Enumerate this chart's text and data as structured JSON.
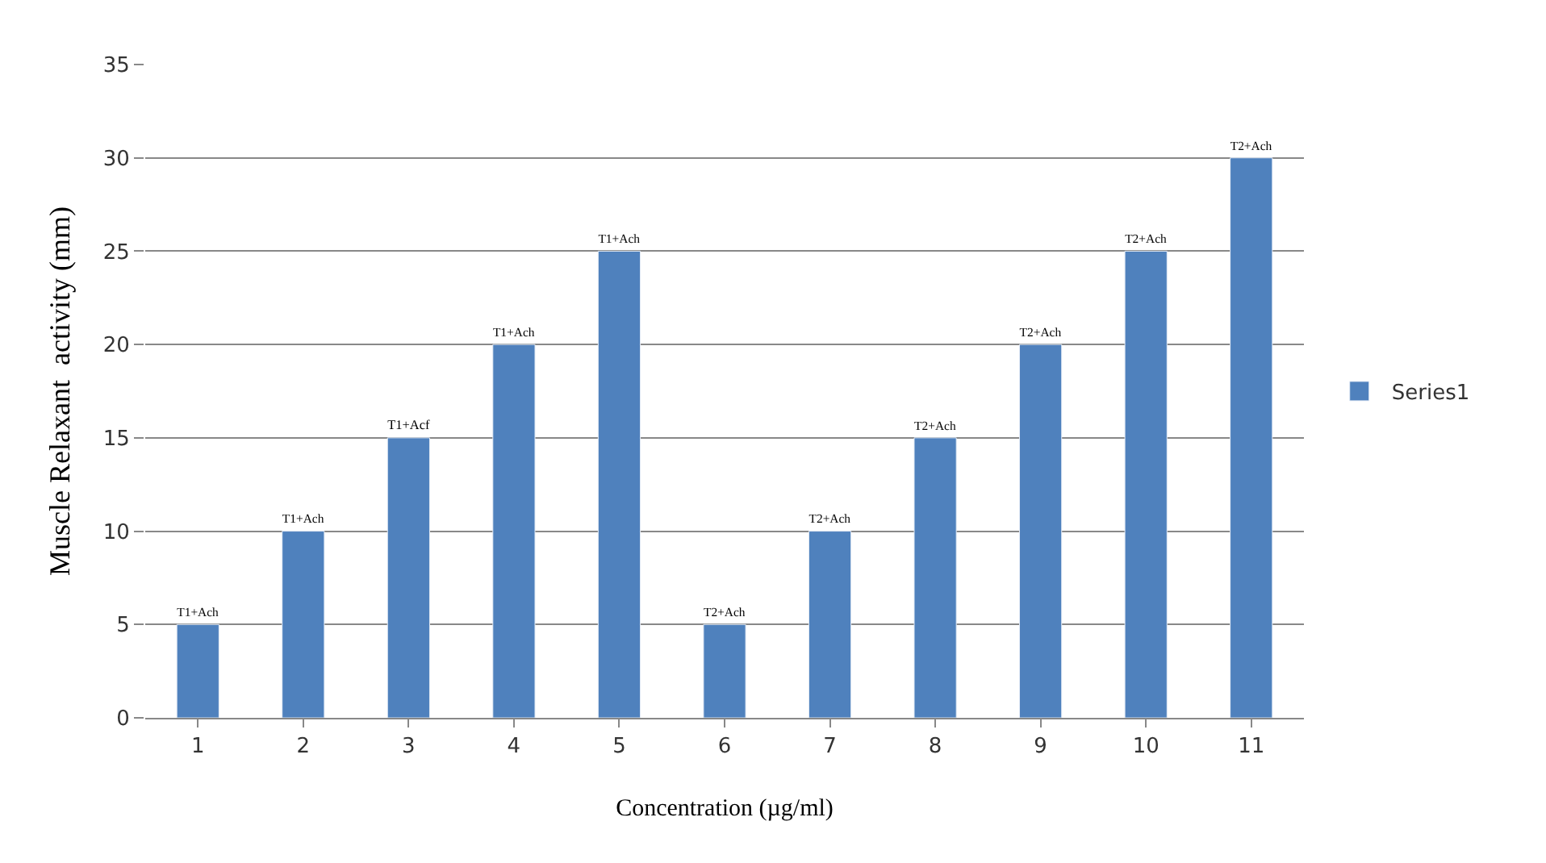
{
  "chart_data": {
    "type": "bar",
    "xlabel": "Concentration (µg/ml)",
    "ylabel": "Muscle Relaxant  activity (mm)",
    "categories": [
      "1",
      "2",
      "3",
      "4",
      "5",
      "6",
      "7",
      "8",
      "9",
      "10",
      "11"
    ],
    "series": [
      {
        "name": "Series1",
        "color": "#4f81bd",
        "values": [
          5,
          10,
          15,
          20,
          25,
          5,
          10,
          15,
          20,
          25,
          30
        ],
        "value_labels": [
          "T1+Ach",
          "T1+Ach",
          "T1+Acf",
          "T1+Ach",
          "T1+Ach",
          "T2+Ach",
          "T2+Ach",
          "T2+Ach",
          "T2+Ach",
          "T2+Ach",
          "T2+Ach"
        ]
      }
    ],
    "ylim": [
      0,
      35
    ],
    "yticks": [
      0,
      5,
      10,
      15,
      20,
      25,
      30,
      35
    ],
    "grid": "y",
    "legend": "right"
  }
}
